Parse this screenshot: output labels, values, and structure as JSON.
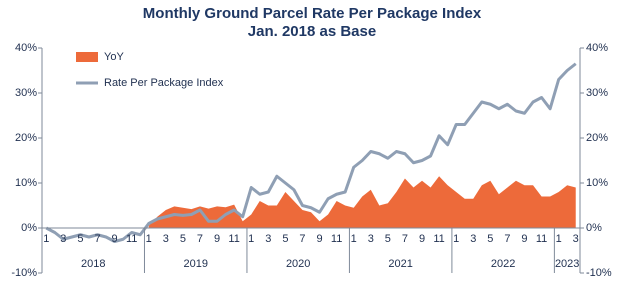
{
  "chart_data": {
    "type": "area-line",
    "title": "Monthly Ground Parcel Rate Per Package Index",
    "subtitle": "Jan. 2018 as Base",
    "categories": [
      "1",
      null,
      "3",
      null,
      "5",
      null,
      "7",
      null,
      "9",
      null,
      "11",
      null,
      "1",
      null,
      "3",
      null,
      "5",
      null,
      "7",
      null,
      "9",
      null,
      "11",
      null,
      "1",
      null,
      "3",
      null,
      "5",
      null,
      "7",
      null,
      "9",
      null,
      "11",
      null,
      "1",
      null,
      "3",
      null,
      "5",
      null,
      "7",
      null,
      "9",
      null,
      "11",
      null,
      "1",
      null,
      "3",
      null,
      "5",
      null,
      "7",
      null,
      "9",
      null,
      "11",
      null,
      "1",
      null,
      "3"
    ],
    "year_groups": [
      "2018",
      "2019",
      "2020",
      "2021",
      "2022",
      "2023"
    ],
    "series": [
      {
        "name": "YoY",
        "color": "#ed6a3a",
        "kind": "area",
        "values": [
          null,
          null,
          null,
          null,
          null,
          null,
          null,
          null,
          null,
          null,
          null,
          null,
          0.5,
          2.5,
          4,
          4.8,
          4.5,
          4.2,
          4.8,
          4.3,
          4.8,
          4.6,
          5.2,
          1.5,
          3,
          6,
          5,
          5,
          8,
          6,
          4,
          3.5,
          1.5,
          3,
          6,
          5,
          4.5,
          7,
          8.5,
          5,
          5.5,
          8,
          11,
          9,
          10.5,
          9,
          11.5,
          9.5,
          8,
          6.5,
          6.5,
          9.5,
          10.5,
          7.5,
          9,
          10.5,
          9.5,
          9.5,
          7,
          7,
          8,
          9.5,
          9
        ]
      },
      {
        "name": "Rate Per Package Index",
        "color": "#8f9fb4",
        "kind": "line",
        "values": [
          0,
          -1,
          -2.5,
          -2,
          -1.5,
          -2,
          -1.5,
          -2,
          -3,
          -2.5,
          -1,
          -1.5,
          1,
          2,
          2.5,
          3,
          2.8,
          3,
          4,
          1.5,
          1.5,
          3,
          4,
          2.5,
          9,
          7.5,
          8,
          11.5,
          10,
          8.5,
          5,
          4.5,
          3.5,
          6.5,
          7.5,
          8,
          13.5,
          15,
          17,
          16.5,
          15.5,
          17,
          16.5,
          14.5,
          15,
          16,
          20.5,
          18.5,
          23,
          23,
          25.5,
          28,
          27.5,
          26.5,
          27.5,
          26,
          25.5,
          28,
          29,
          26.5,
          33,
          35,
          36.5
        ]
      }
    ],
    "ylim": [
      -10,
      40
    ],
    "yticks": [
      {
        "value": -10,
        "label": "-10%"
      },
      {
        "value": 0,
        "label": "0%"
      },
      {
        "value": 10,
        "label": "10%"
      },
      {
        "value": 20,
        "label": "20%"
      },
      {
        "value": 30,
        "label": "30%"
      },
      {
        "value": 40,
        "label": "40%"
      }
    ],
    "y2lim": [
      -10,
      40
    ],
    "y2ticks": [
      {
        "value": -10,
        "label": "-10%"
      },
      {
        "value": 0,
        "label": "0%"
      },
      {
        "value": 10,
        "label": "10%"
      },
      {
        "value": 20,
        "label": "20%"
      },
      {
        "value": 30,
        "label": "30%"
      },
      {
        "value": 40,
        "label": "40%"
      }
    ],
    "legend": "top-left",
    "grid": false
  }
}
